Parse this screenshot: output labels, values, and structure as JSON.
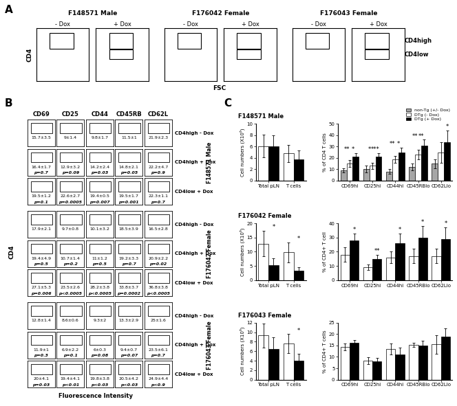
{
  "panel_labels": [
    "A",
    "B",
    "C"
  ],
  "panel_a": {
    "y_label": "CD4",
    "x_label": "FSC",
    "groups": [
      "F148571 Male",
      "F176042 Female",
      "F176043 Female"
    ],
    "conditions": [
      "- Dox",
      "+ Dox"
    ],
    "gate_labels": [
      "CD4high",
      "CD4low"
    ]
  },
  "panel_b": {
    "markers": [
      "CD69",
      "CD25",
      "CD44",
      "CD45RB",
      "CD62L"
    ],
    "x_label": "Fluorescence Intensity",
    "y_label": "CD4",
    "groups": [
      {
        "name": "F148571 Male",
        "rows": [
          {
            "label": "CD4high - Dox",
            "cells": [
              [
                "15.7±3.5",
                null
              ],
              [
                "9±1.4",
                null
              ],
              [
                "9.8±1.7",
                null
              ],
              [
                "11.5±1",
                null
              ],
              [
                "21.9±2.3",
                null
              ]
            ]
          },
          {
            "label": "CD4high + Dox",
            "cells": [
              [
                "16.4±1.7",
                "p=0.7"
              ],
              [
                "12.9±3.2",
                "p=0.09"
              ],
              [
                "14.2±2.4",
                "p=0.03"
              ],
              [
                "14.8±2.1",
                "p=0.05"
              ],
              [
                "22.2±4.7",
                "p=0.9"
              ]
            ]
          },
          {
            "label": "CD4low + Dox",
            "cells": [
              [
                "19.5±1.2",
                "p=0.1"
              ],
              [
                "22.6±2.7",
                "p=0.0005"
              ],
              [
                "19.4±0.5",
                "p=0.007"
              ],
              [
                "19.5±1.7",
                "p=0.001"
              ],
              [
                "22.3±1.1",
                "p=0.7"
              ]
            ]
          }
        ]
      },
      {
        "name": "F176042 Female",
        "rows": [
          {
            "label": "CD4high - Dox",
            "cells": [
              [
                "17.9±2.1",
                null
              ],
              [
                "9.7±0.8",
                null
              ],
              [
                "10.1±3.2",
                null
              ],
              [
                "18.5±3.9",
                null
              ],
              [
                "16.5±2.8",
                null
              ]
            ]
          },
          {
            "label": "CD4high + Dox",
            "cells": [
              [
                "19.4±4.9",
                "p=0.5"
              ],
              [
                "10.7±1.4",
                "p=0.2"
              ],
              [
                "11±1.2",
                "p=0.5"
              ],
              [
                "19.2±3.3",
                "p=0.7"
              ],
              [
                "20.9±2.2",
                "p=0.02"
              ]
            ]
          },
          {
            "label": "CD4low + Dox",
            "cells": [
              [
                "27.1±5.3",
                "p=0.006"
              ],
              [
                "23.5±2.6",
                "p<0.0005"
              ],
              [
                "28.2±3.8",
                "p<0.0005"
              ],
              [
                "33.8±3.7",
                "p=0.0002"
              ],
              [
                "36.8±3.8",
                "p<0.0005"
              ]
            ]
          }
        ]
      },
      {
        "name": "F176043 Female",
        "rows": [
          {
            "label": "CD4high - Dox",
            "cells": [
              [
                "12.8±1.4",
                null
              ],
              [
                "8.6±0.6",
                null
              ],
              [
                "9.3±2",
                null
              ],
              [
                "13.3±2.9",
                null
              ],
              [
                "25±1.6",
                null
              ]
            ]
          },
          {
            "label": "CD4high + Dox",
            "cells": [
              [
                "11.9±1",
                "p=0.3"
              ],
              [
                "6.9±2.2",
                "p=0.1"
              ],
              [
                "6±0.3",
                "p=0.08"
              ],
              [
                "9.4±0.7",
                "p=0.07"
              ],
              [
                "23.5±6.1",
                "p=0.7"
              ]
            ]
          },
          {
            "label": "CD4low + Dox",
            "cells": [
              [
                "20±4.1",
                "p=0.03"
              ],
              [
                "19.4±4.1",
                "p<0.01"
              ],
              [
                "19.8±3.8",
                "p<0.03"
              ],
              [
                "20.5±4.2",
                "p<0.03"
              ],
              [
                "24.9±4.4",
                "p<0.9"
              ]
            ]
          }
        ]
      }
    ]
  },
  "chart_data": [
    {
      "type": "bar",
      "title": "F148571 Male",
      "ylabel": "Cell numbers (X10⁶)",
      "categories": [
        "Total pLN",
        "T cells"
      ],
      "series": [
        {
          "color": "#ffffff",
          "values": [
            6.1,
            4.8
          ],
          "errors": [
            2.0,
            1.5
          ]
        },
        {
          "color": "#000000",
          "values": [
            6.0,
            3.8
          ],
          "errors": [
            2.0,
            1.5
          ]
        }
      ],
      "ylim": [
        0,
        10
      ],
      "yticks": [
        0,
        2,
        4,
        6,
        8,
        10
      ],
      "stars": [
        [],
        []
      ]
    },
    {
      "type": "bar",
      "ylabel": "% of CD4 T cells",
      "categories": [
        "CD69hi",
        "CD25hi",
        "CD44hi",
        "CD45RBlo",
        "CD62Llo"
      ],
      "series": [
        {
          "name": "non-Tg (+/- Dox)",
          "color": "#a6a6a6",
          "values": [
            9,
            10,
            8,
            12,
            15
          ],
          "errors": [
            2,
            3,
            2,
            3,
            4
          ]
        },
        {
          "name": "DTg (- Dox)",
          "color": "#ffffff",
          "values": [
            15,
            13,
            19,
            23,
            25
          ],
          "errors": [
            3,
            3,
            3,
            4,
            9
          ]
        },
        {
          "name": "DTg (+ Dox)",
          "color": "#000000",
          "values": [
            21,
            21,
            25,
            31,
            34
          ],
          "errors": [
            3,
            3,
            4,
            5,
            10
          ]
        }
      ],
      "ylim": [
        0,
        50
      ],
      "yticks": [
        0,
        10,
        20,
        30,
        40,
        50
      ],
      "legend": "upper right",
      "stars": [
        [
          "**",
          "*"
        ],
        [
          "*",
          "***"
        ],
        [
          "**",
          "*"
        ],
        [
          "**",
          "**"
        ],
        [
          "*"
        ]
      ]
    },
    {
      "type": "bar",
      "title": "F176042 Female",
      "ylabel": "Cell numbers (X10⁶)",
      "categories": [
        "Total pLN",
        "T cells"
      ],
      "series": [
        {
          "color": "#ffffff",
          "values": [
            12.8,
            9.8
          ],
          "errors": [
            4.5,
            3.5
          ]
        },
        {
          "color": "#000000",
          "values": [
            5.3,
            3.3
          ],
          "errors": [
            2.5,
            1.2
          ]
        }
      ],
      "ylim": [
        0,
        20
      ],
      "yticks": [
        0,
        5,
        10,
        15,
        20
      ],
      "stars": [
        [
          "*"
        ],
        [
          "*"
        ]
      ]
    },
    {
      "type": "bar",
      "ylabel": "% of CD4+ T cell",
      "categories": [
        "CD69hi",
        "CD25hi",
        "CD44hi",
        "CD45RBlo",
        "CD62Llo"
      ],
      "series": [
        {
          "color": "#ffffff",
          "values": [
            18,
            9,
            16,
            17,
            17
          ],
          "errors": [
            5,
            2,
            4,
            5,
            5
          ]
        },
        {
          "color": "#000000",
          "values": [
            28,
            15,
            26,
            30,
            29
          ],
          "errors": [
            5,
            3,
            7,
            8,
            8
          ]
        }
      ],
      "ylim": [
        0,
        40
      ],
      "yticks": [
        0,
        10,
        20,
        30,
        40
      ],
      "stars": [
        [
          "*"
        ],
        [
          "**"
        ],
        [
          "*"
        ],
        [
          "*"
        ],
        [
          "*"
        ]
      ]
    },
    {
      "type": "bar",
      "title": "F176043 Female",
      "ylabel": "Cell numbers (X10⁶)",
      "categories": [
        "Total pLN",
        "T cells"
      ],
      "series": [
        {
          "color": "#ffffff",
          "values": [
            9.3,
            7.6
          ],
          "errors": [
            2.5,
            2.0
          ]
        },
        {
          "color": "#000000",
          "values": [
            6.5,
            4.0
          ],
          "errors": [
            2.5,
            1.5
          ]
        }
      ],
      "ylim": [
        0,
        12
      ],
      "yticks": [
        0,
        2,
        4,
        6,
        8,
        10,
        12
      ],
      "stars": [
        [],
        [
          "*"
        ]
      ]
    },
    {
      "type": "bar",
      "ylabel": "% of CD4+ T cells",
      "categories": [
        "CD69hi",
        "CD25hi",
        "CD44hi",
        "CD45RBlo",
        "CD62Llo"
      ],
      "series": [
        {
          "color": "#ffffff",
          "values": [
            14.5,
            8.3,
            13.5,
            15.3,
            15.5
          ],
          "errors": [
            1.5,
            1.5,
            2.5,
            1.0,
            4.0
          ]
        },
        {
          "color": "#000000",
          "values": [
            16.3,
            8.0,
            11.2,
            15.0,
            19.0
          ],
          "errors": [
            1.0,
            1.5,
            3.0,
            2.0,
            3.5
          ]
        }
      ],
      "ylim": [
        0,
        25
      ],
      "yticks": [
        0,
        5,
        10,
        15,
        20,
        25
      ],
      "stars": [
        [],
        [],
        [],
        [],
        []
      ]
    }
  ]
}
